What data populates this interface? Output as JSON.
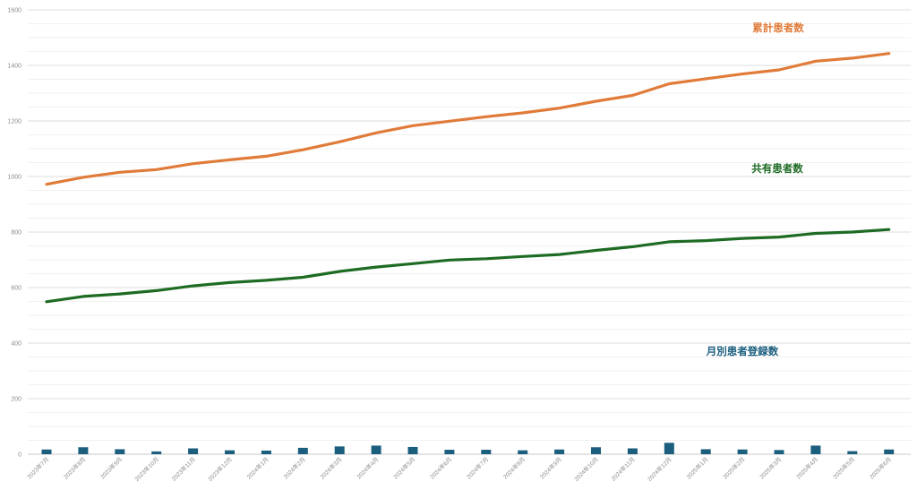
{
  "chart_data": {
    "type": "line",
    "x": [
      "2023年7月",
      "2023年8月",
      "2023年9月",
      "2023年10月",
      "2023年11月",
      "2023年12月",
      "2024年1月",
      "2024年2月",
      "2024年3月",
      "2024年4月",
      "2024年5月",
      "2024年6月",
      "2024年7月",
      "2024年8月",
      "2024年9月",
      "2024年10月",
      "2024年11月",
      "2024年12月",
      "2025年1月",
      "2025年2月",
      "2025年3月",
      "2025年4月",
      "2025年5月",
      "2025年6月"
    ],
    "ylim": [
      0,
      1600
    ],
    "yticks": [
      0,
      200,
      400,
      600,
      800,
      1000,
      1200,
      1400,
      1600
    ],
    "grid": true,
    "series": [
      {
        "name": "累計患者数",
        "type": "line",
        "color": "#e07b39",
        "values": [
          972,
          997,
          1015,
          1025,
          1046,
          1060,
          1073,
          1096,
          1125,
          1157,
          1183,
          1199,
          1215,
          1229,
          1246,
          1271,
          1292,
          1334,
          1352,
          1369,
          1384,
          1415,
          1426,
          1443
        ]
      },
      {
        "name": "共有患者数",
        "type": "line",
        "color": "#1e6b24",
        "values": [
          549,
          568,
          577,
          589,
          606,
          618,
          626,
          637,
          658,
          674,
          686,
          699,
          704,
          712,
          719,
          734,
          747,
          765,
          769,
          777,
          782,
          795,
          800,
          809
        ]
      },
      {
        "name": "月別患者登録数",
        "type": "bar",
        "color": "#1b5e7e",
        "values": [
          17,
          25,
          18,
          10,
          21,
          14,
          13,
          23,
          28,
          31,
          26,
          16,
          16,
          14,
          17,
          25,
          21,
          41,
          18,
          17,
          15,
          31,
          11,
          17
        ]
      }
    ]
  }
}
